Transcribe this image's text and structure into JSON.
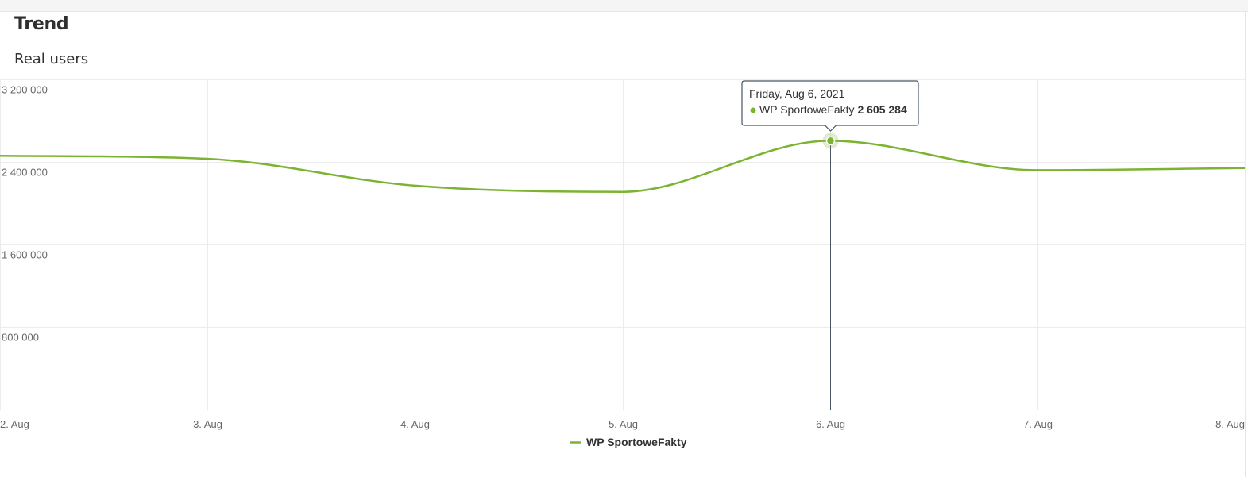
{
  "header": {
    "title": "Trend",
    "subtitle": "Real users"
  },
  "chart_data": {
    "type": "line",
    "x": [
      "2. Aug",
      "3. Aug",
      "4. Aug",
      "5. Aug",
      "6. Aug",
      "7. Aug",
      "8. Aug"
    ],
    "series": [
      {
        "name": "WP SportoweFakty",
        "color": "#7cb332",
        "values": [
          2460000,
          2430000,
          2170000,
          2110000,
          2605284,
          2320000,
          2340000
        ]
      }
    ],
    "yticks": [
      "800 000",
      "1 600 000",
      "2 400 000",
      "3 200 000"
    ],
    "ylim": [
      0,
      3200000
    ],
    "grid": true,
    "legend": "bottom-center",
    "tooltip": {
      "date": "Friday, Aug 6, 2021",
      "series": "WP SportoweFakty",
      "value": "2 605 284",
      "index": 4
    }
  }
}
